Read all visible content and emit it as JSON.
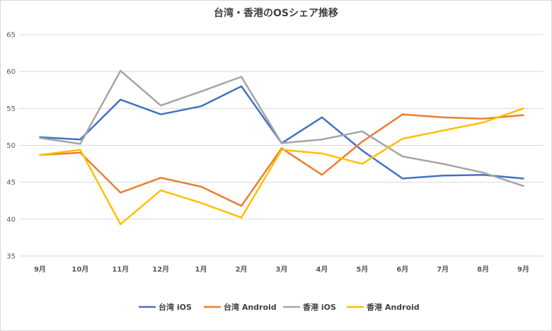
{
  "chart_data": {
    "type": "line",
    "title": "台湾・香港のOSシェア推移",
    "xlabel": "",
    "ylabel": "",
    "categories": [
      "9月",
      "10月",
      "11月",
      "12月",
      "1月",
      "2月",
      "3月",
      "4月",
      "5月",
      "6月",
      "7月",
      "8月",
      "9月"
    ],
    "ylim": [
      35,
      65
    ],
    "yticks": [
      35,
      40,
      45,
      50,
      55,
      60,
      65
    ],
    "grid": true,
    "legend_position": "bottom",
    "series": [
      {
        "name": "台湾 iOS",
        "color": "#4472c4",
        "values": [
          51.1,
          50.8,
          56.2,
          54.2,
          55.3,
          58.0,
          50.3,
          53.8,
          49.3,
          45.5,
          45.9,
          46.0,
          45.5
        ]
      },
      {
        "name": "台湾 Android",
        "color": "#ed7d31",
        "values": [
          48.7,
          49.0,
          43.6,
          45.6,
          44.4,
          41.8,
          49.6,
          46.0,
          50.5,
          54.2,
          53.8,
          53.6,
          54.1
        ]
      },
      {
        "name": "香港 iOS",
        "color": "#a5a5a5",
        "values": [
          51.0,
          50.2,
          60.1,
          55.4,
          57.3,
          59.3,
          50.3,
          50.8,
          51.9,
          48.5,
          47.5,
          46.3,
          44.5
        ]
      },
      {
        "name": "香港 Android",
        "color": "#ffc000",
        "values": [
          48.7,
          49.4,
          39.3,
          43.9,
          42.2,
          40.2,
          49.4,
          48.9,
          47.5,
          50.9,
          52.0,
          53.1,
          55.0
        ]
      }
    ]
  }
}
